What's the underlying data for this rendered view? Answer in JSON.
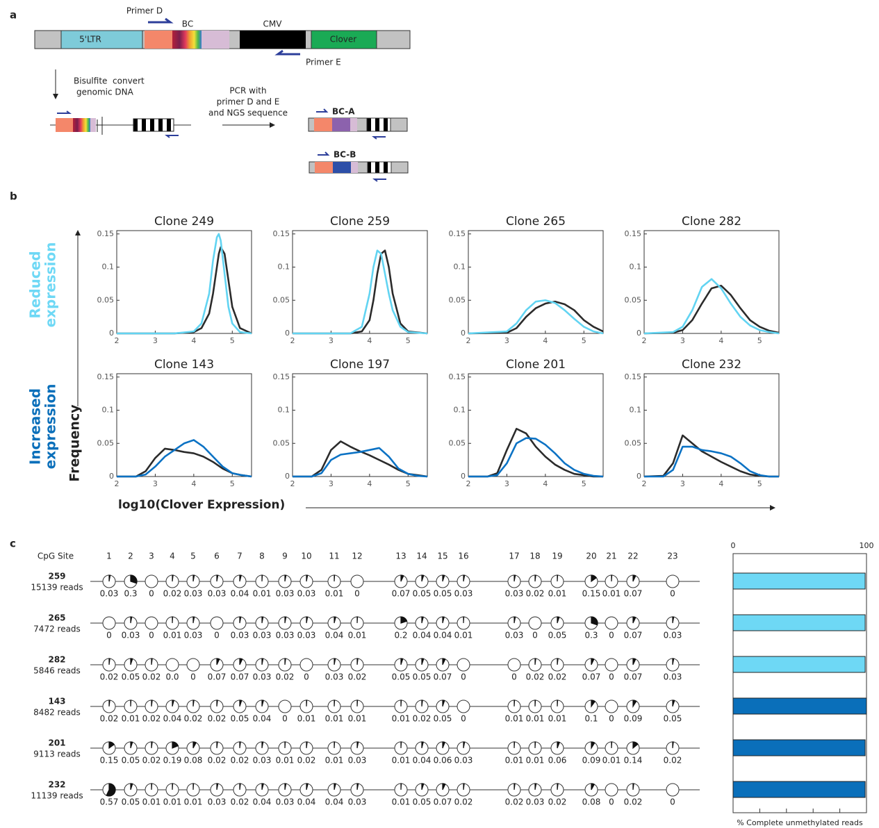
{
  "figure": {
    "panel_labels": [
      "a",
      "b",
      "c"
    ]
  },
  "panel_a": {
    "primer_d": "Primer D",
    "bc": "BC",
    "cmv": "CMV",
    "ltr": "5'LTR",
    "clover": "Clover",
    "primer_e": "Primer E",
    "bisulfite": [
      "Bisulfite  convert",
      "genomic DNA"
    ],
    "pcr": [
      "PCR with",
      "primer D and E",
      "and NGS sequence"
    ],
    "bc_a": "BC-A",
    "bc_b": "BC-B"
  },
  "panel_b": {
    "row_labels": [
      [
        "Reduced",
        "expression"
      ],
      [
        "Increased",
        "expression"
      ]
    ],
    "y_label": "Frequency",
    "x_label": "log10(Clover Expression)"
  },
  "chart_data": [
    {
      "type": "line",
      "title": "Clone 249",
      "xlim": [
        2,
        5.5
      ],
      "ylim": [
        0,
        0.155
      ],
      "xticks": [
        2,
        3,
        4,
        5
      ],
      "yticks": [
        0,
        0.05,
        0.1,
        0.15
      ],
      "x": [
        2,
        3.5,
        4,
        4.2,
        4.4,
        4.5,
        4.6,
        4.65,
        4.7,
        4.8,
        4.9,
        5,
        5.2,
        5.5
      ],
      "series": [
        {
          "color": "#2b2b2b",
          "values": [
            0,
            0,
            0.002,
            0.008,
            0.03,
            0.06,
            0.1,
            0.12,
            0.13,
            0.12,
            0.08,
            0.04,
            0.008,
            0
          ]
        },
        {
          "color": "#62d4f2",
          "values": [
            0,
            0,
            0.003,
            0.015,
            0.06,
            0.11,
            0.145,
            0.15,
            0.14,
            0.09,
            0.04,
            0.015,
            0.002,
            0
          ]
        }
      ]
    },
    {
      "type": "line",
      "title": "Clone 259",
      "xlim": [
        2,
        5.5
      ],
      "ylim": [
        0,
        0.155
      ],
      "xticks": [
        2,
        3,
        4,
        5
      ],
      "yticks": [
        0,
        0.05,
        0.1,
        0.15
      ],
      "x": [
        2,
        3.5,
        3.8,
        4,
        4.1,
        4.2,
        4.3,
        4.4,
        4.5,
        4.6,
        4.8,
        5,
        5.5
      ],
      "series": [
        {
          "color": "#2b2b2b",
          "values": [
            0,
            0,
            0.003,
            0.02,
            0.05,
            0.09,
            0.12,
            0.125,
            0.1,
            0.06,
            0.015,
            0.003,
            0
          ]
        },
        {
          "color": "#62d4f2",
          "values": [
            0,
            0,
            0.01,
            0.06,
            0.1,
            0.125,
            0.12,
            0.09,
            0.06,
            0.035,
            0.01,
            0.002,
            0
          ]
        }
      ]
    },
    {
      "type": "line",
      "title": "Clone 265",
      "xlim": [
        2,
        5.5
      ],
      "ylim": [
        0,
        0.155
      ],
      "xticks": [
        2,
        3,
        4,
        5
      ],
      "yticks": [
        0,
        0.05,
        0.1,
        0.15
      ],
      "x": [
        2,
        3,
        3.25,
        3.5,
        3.75,
        4,
        4.25,
        4.5,
        4.75,
        5,
        5.25,
        5.5
      ],
      "series": [
        {
          "color": "#2b2b2b",
          "values": [
            0,
            0.001,
            0.008,
            0.025,
            0.038,
            0.045,
            0.048,
            0.044,
            0.035,
            0.02,
            0.01,
            0.003
          ]
        },
        {
          "color": "#62d4f2",
          "values": [
            0,
            0.003,
            0.015,
            0.035,
            0.048,
            0.05,
            0.046,
            0.035,
            0.022,
            0.01,
            0.003,
            0
          ]
        }
      ]
    },
    {
      "type": "line",
      "title": "Clone 282",
      "xlim": [
        2,
        5.5
      ],
      "ylim": [
        0,
        0.155
      ],
      "xticks": [
        2,
        3,
        4,
        5
      ],
      "yticks": [
        0,
        0.05,
        0.1,
        0.15
      ],
      "x": [
        2,
        2.75,
        3,
        3.25,
        3.5,
        3.75,
        4,
        4.25,
        4.5,
        4.75,
        5,
        5.25,
        5.5
      ],
      "series": [
        {
          "color": "#2b2b2b",
          "values": [
            0,
            0.001,
            0.005,
            0.02,
            0.045,
            0.068,
            0.072,
            0.058,
            0.038,
            0.02,
            0.01,
            0.004,
            0.001
          ]
        },
        {
          "color": "#62d4f2",
          "values": [
            0,
            0.002,
            0.01,
            0.035,
            0.07,
            0.082,
            0.068,
            0.045,
            0.025,
            0.012,
            0.005,
            0.002,
            0
          ]
        }
      ]
    },
    {
      "type": "line",
      "title": "Clone 143",
      "xlim": [
        2,
        5.5
      ],
      "ylim": [
        0,
        0.155
      ],
      "xticks": [
        2,
        3,
        4,
        5
      ],
      "yticks": [
        0,
        0.05,
        0.1,
        0.15
      ],
      "x": [
        2,
        2.5,
        2.75,
        3,
        3.25,
        3.5,
        3.75,
        4,
        4.25,
        4.5,
        4.75,
        5,
        5.25,
        5.5
      ],
      "series": [
        {
          "color": "#2b2b2b",
          "values": [
            0,
            0,
            0.008,
            0.028,
            0.042,
            0.04,
            0.037,
            0.035,
            0.03,
            0.022,
            0.012,
            0.005,
            0.002,
            0
          ]
        },
        {
          "color": "#0b72c4",
          "values": [
            0,
            0,
            0.003,
            0.015,
            0.03,
            0.04,
            0.05,
            0.055,
            0.045,
            0.03,
            0.015,
            0.005,
            0.002,
            0
          ]
        }
      ]
    },
    {
      "type": "line",
      "title": "Clone 197",
      "xlim": [
        2,
        5.5
      ],
      "ylim": [
        0,
        0.155
      ],
      "xticks": [
        2,
        3,
        4,
        5
      ],
      "yticks": [
        0,
        0.05,
        0.1,
        0.15
      ],
      "x": [
        2,
        2.5,
        2.75,
        3,
        3.25,
        3.5,
        3.75,
        4,
        4.25,
        4.5,
        4.75,
        5,
        5.25,
        5.5
      ],
      "series": [
        {
          "color": "#2b2b2b",
          "values": [
            0,
            0,
            0.01,
            0.04,
            0.053,
            0.045,
            0.038,
            0.032,
            0.025,
            0.018,
            0.01,
            0.004,
            0.002,
            0
          ]
        },
        {
          "color": "#0b72c4",
          "values": [
            0,
            0,
            0.005,
            0.025,
            0.033,
            0.035,
            0.037,
            0.04,
            0.043,
            0.03,
            0.012,
            0.004,
            0.001,
            0
          ]
        }
      ]
    },
    {
      "type": "line",
      "title": "Clone 201",
      "xlim": [
        2,
        5.5
      ],
      "ylim": [
        0,
        0.155
      ],
      "xticks": [
        2,
        3,
        4,
        5
      ],
      "yticks": [
        0,
        0.05,
        0.1,
        0.15
      ],
      "x": [
        2,
        2.5,
        2.75,
        3,
        3.25,
        3.5,
        3.75,
        4,
        4.25,
        4.5,
        4.75,
        5,
        5.25,
        5.5
      ],
      "series": [
        {
          "color": "#2b2b2b",
          "values": [
            0,
            0,
            0.005,
            0.04,
            0.072,
            0.065,
            0.045,
            0.03,
            0.018,
            0.01,
            0.004,
            0.002,
            0,
            0
          ]
        },
        {
          "color": "#0b72c4",
          "values": [
            0,
            0,
            0.002,
            0.02,
            0.05,
            0.058,
            0.057,
            0.048,
            0.035,
            0.02,
            0.01,
            0.004,
            0.001,
            0
          ]
        }
      ]
    },
    {
      "type": "line",
      "title": "Clone 232",
      "xlim": [
        2,
        5.5
      ],
      "ylim": [
        0,
        0.155
      ],
      "xticks": [
        2,
        3,
        4,
        5
      ],
      "yticks": [
        0,
        0.05,
        0.1,
        0.15
      ],
      "x": [
        2,
        2.5,
        2.75,
        3,
        3.25,
        3.5,
        3.75,
        4,
        4.25,
        4.5,
        4.75,
        5,
        5.25,
        5.5
      ],
      "series": [
        {
          "color": "#2b2b2b",
          "values": [
            0,
            0.001,
            0.02,
            0.062,
            0.05,
            0.038,
            0.03,
            0.022,
            0.015,
            0.008,
            0.003,
            0.001,
            0,
            0
          ]
        },
        {
          "color": "#0b72c4",
          "values": [
            0,
            0,
            0.01,
            0.045,
            0.045,
            0.04,
            0.038,
            0.035,
            0.03,
            0.02,
            0.008,
            0.002,
            0,
            0
          ]
        }
      ]
    },
    {
      "type": "bar",
      "orientation": "horizontal",
      "xlabel": "% Complete unmethylated reads",
      "xlim": [
        0,
        100
      ],
      "xticks": [
        0,
        100
      ],
      "minor_xticks": [
        20,
        40,
        60,
        80
      ],
      "values": [
        99,
        99,
        99,
        100,
        99,
        99
      ],
      "colors": [
        "#6ed8f5",
        "#6ed8f5",
        "#6ed8f5",
        "#0a6fba",
        "#0a6fba",
        "#0a6fba"
      ]
    }
  ],
  "methylation": {
    "site_header": "CpG Site",
    "sites": [
      1,
      2,
      3,
      4,
      5,
      6,
      7,
      8,
      9,
      10,
      11,
      12,
      13,
      14,
      15,
      16,
      17,
      18,
      19,
      20,
      21,
      22,
      23
    ],
    "rows": [
      {
        "clone": 259,
        "reads": "15139 reads",
        "values": [
          0.03,
          0.3,
          0,
          0.02,
          0.03,
          0.03,
          0.04,
          0.01,
          0.03,
          0.03,
          0.01,
          0,
          0.07,
          0.05,
          0.05,
          0.03,
          0.03,
          0.02,
          0.01,
          0.15,
          0.01,
          0.07,
          0
        ]
      },
      {
        "clone": 265,
        "reads": "7472 reads",
        "values": [
          0,
          0.03,
          0,
          0.01,
          0.03,
          0,
          0.03,
          0.03,
          0.03,
          0.03,
          0.04,
          0.01,
          0.2,
          0.04,
          0.04,
          0.01,
          0.03,
          0,
          0.05,
          0.3,
          0,
          0.07,
          0.03
        ]
      },
      {
        "clone": 282,
        "reads": "5846 reads",
        "values": [
          0.02,
          0.05,
          0.02,
          0,
          0,
          0.07,
          0.07,
          0.03,
          0.02,
          0,
          0.03,
          0.02,
          0.05,
          0.05,
          0.07,
          0,
          0,
          0.02,
          0.02,
          0.07,
          0,
          0.07,
          0.03
        ],
        "value_labels": [
          "0.02",
          "0.05",
          "0.02",
          "0.0",
          "0",
          "0.07",
          "0.07",
          "0.03",
          "0.02",
          "0",
          "0.03",
          "0.02",
          "0.05",
          "0.05",
          "0.07",
          "0",
          "0",
          "0.02",
          "0.02",
          "0.07",
          "0",
          "0.07",
          "0.03"
        ]
      },
      {
        "clone": 143,
        "reads": "8482 reads",
        "values": [
          0.02,
          0.01,
          0.02,
          0.04,
          0.02,
          0.02,
          0.05,
          0.04,
          0,
          0.01,
          0.01,
          0.01,
          0.01,
          0.02,
          0.05,
          0,
          0.01,
          0.01,
          0.01,
          0.1,
          0,
          0.09,
          0.05
        ]
      },
      {
        "clone": 201,
        "reads": "9113 reads",
        "values": [
          0.15,
          0.05,
          0.02,
          0.19,
          0.08,
          0.02,
          0.02,
          0.03,
          0.01,
          0.02,
          0.01,
          0.03,
          0.01,
          0.04,
          0.06,
          0.03,
          0.01,
          0.01,
          0.06,
          0.09,
          0.01,
          0.14,
          0.02
        ]
      },
      {
        "clone": 232,
        "reads": "11139 reads",
        "values": [
          0.57,
          0.05,
          0.01,
          0.01,
          0.01,
          0.03,
          0.02,
          0.04,
          0.03,
          0.04,
          0.04,
          0.03,
          0.01,
          0.05,
          0.07,
          0.02,
          0.02,
          0.03,
          0.02,
          0.08,
          0,
          0.02,
          0
        ]
      }
    ]
  }
}
